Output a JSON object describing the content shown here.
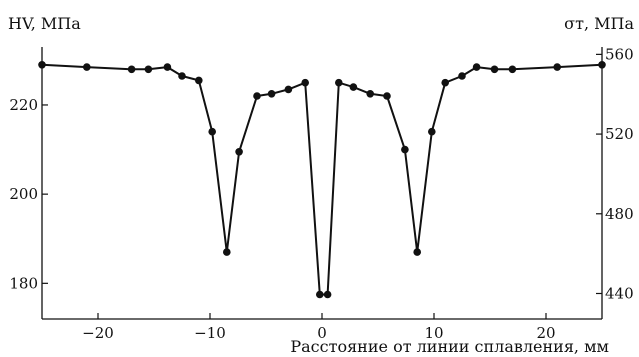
{
  "chart_data": {
    "type": "line",
    "ylabel_left": "HV, МПа",
    "ylabel_right": "σт, МПа",
    "xlabel": "Расстояние от линии сплавления, мм",
    "xlim": [
      -25,
      25
    ],
    "ylim_left": [
      172,
      233
    ],
    "ylim_right": [
      427.2,
      563.7
    ],
    "x_ticks": [
      -20,
      -10,
      0,
      10,
      20
    ],
    "x_tick_labels": [
      "−20",
      "−10",
      "0",
      "10",
      "20"
    ],
    "y_left_ticks": [
      180,
      200,
      220
    ],
    "y_left_tick_labels": [
      "180",
      "200",
      "220"
    ],
    "y_right_ticks": [
      440,
      480,
      520,
      560
    ],
    "y_right_tick_labels": [
      "440",
      "480",
      "520",
      "560"
    ],
    "grid": false,
    "series": [
      {
        "color": "#111111",
        "marker": "filled-circle",
        "x": [
          -25,
          -21,
          -17,
          -15.5,
          -13.8,
          -12.5,
          -11,
          -9.8,
          -8.5,
          -7.4,
          -5.8,
          -4.5,
          -3,
          -1.5,
          -0.2,
          0.5,
          1.5,
          2.8,
          4.3,
          5.8,
          7.4,
          8.5,
          9.8,
          11,
          12.5,
          13.8,
          15.4,
          17,
          21,
          25
        ]
      }
    ]
  },
  "hv_values": [
    229.0,
    228.5,
    228.0,
    228.0,
    228.5,
    226.5,
    225.5,
    214.0,
    187.0,
    209.5,
    222.0,
    222.5,
    223.5,
    225.0,
    177.5,
    177.5,
    225.0,
    224.0,
    222.5,
    222.0,
    210.0,
    187.0,
    214.0,
    225.0,
    226.5,
    228.5,
    228.0,
    228.0,
    228.5,
    229.0
  ]
}
